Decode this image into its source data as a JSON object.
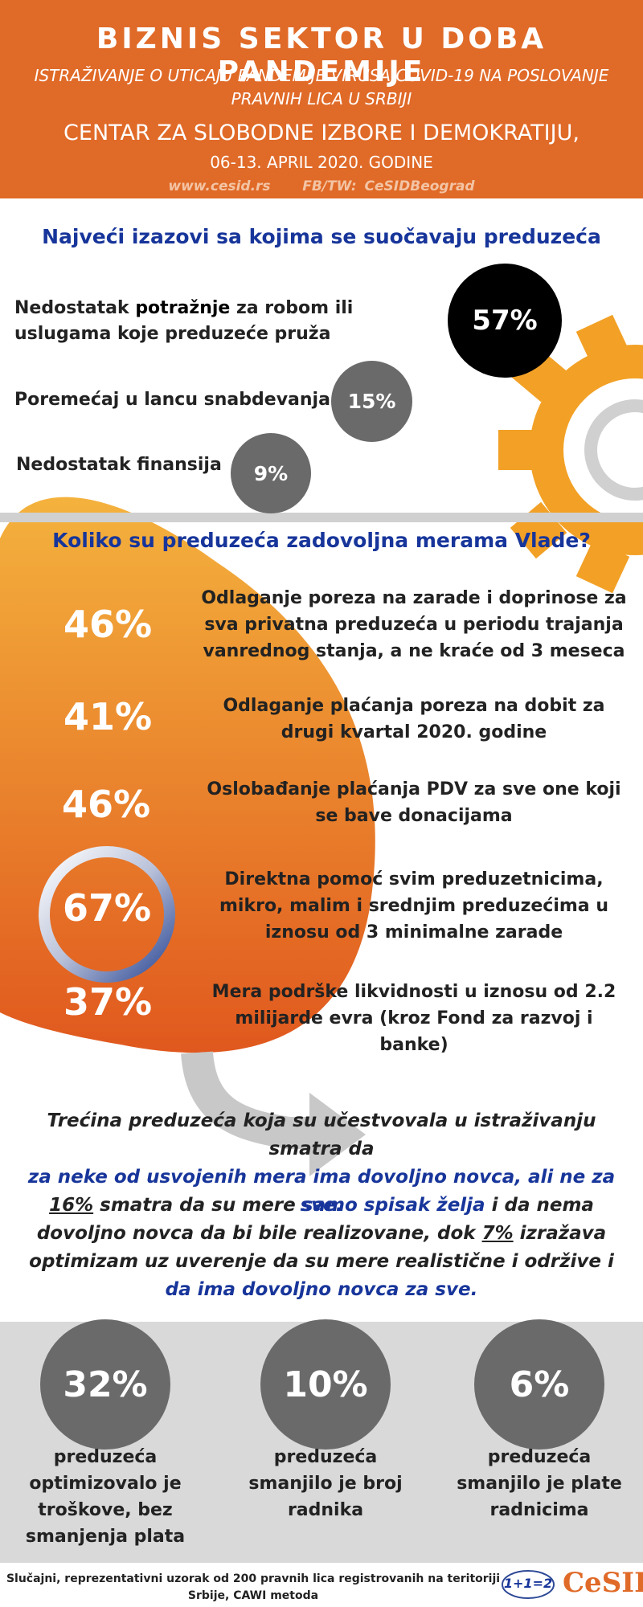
{
  "header": {
    "title": "BIZNIS SEKTOR U DOBA PANDEMIJE",
    "subtitle": "ISTRAŽIVANJE O UTICAJU PANDEMIJE VIRUSA COVID-19 NA POSLOVANJE PRAVNIH LICA U SRBIJI",
    "organization": "CENTAR ZA SLOBODNE IZBORE I DEMOKRATIJU,",
    "date": "06-13. APRIL 2020. GODINE",
    "website": "www.cesid.rs",
    "social": "FB/TW: CeSIDBeograd"
  },
  "challenges": {
    "title": "Najveći izazovi sa kojima se suočavaju preduzeća",
    "items": [
      {
        "pre": "Nedostatak ",
        "bold": "potražnje",
        "post": " za robom ili uslugama koje preduzeće pruža",
        "percent": "57%"
      },
      {
        "pre": "Poremećaj u lancu snabdevanja",
        "bold": "",
        "post": "",
        "percent": "15%"
      },
      {
        "pre": "Nedostatak finansija",
        "bold": "",
        "post": "",
        "percent": "9%"
      }
    ]
  },
  "government": {
    "title": "Koliko su preduzeća zadovoljna merama Vlade?",
    "measures": [
      {
        "percent": "46%",
        "text": "Odlaganje poreza na zarade i doprinose za sva privatna preduzeća u periodu trajanja vanrednog stanja, a ne kraće od 3 meseca"
      },
      {
        "percent": "41%",
        "text": "Odlaganje plaćanja poreza na dobit za drugi kvartal 2020. godine"
      },
      {
        "percent": "46%",
        "text": "Oslobađanje plaćanja PDV za sve one koji se bave donacijama"
      },
      {
        "percent": "67%",
        "text": "Direktna pomoć svim preduzetnicima, mikro, malim i srednjim preduzećima u iznosu od 3 minimalne zarade"
      },
      {
        "percent": "37%",
        "text": "Mera podrške likvidnosti u iznosu od 2.2 milijarde evra (kroz Fond za razvoj i banke)"
      }
    ]
  },
  "summary": {
    "p1_a": "Trećina preduzeća koja su učestvovala u istraživanju smatra da",
    "p1_b": "za neke od usvojenih mera ima dovoljno novca, ali ne za sve.",
    "p2_pct1": "16%",
    "p2_a": " smatra da su mere ",
    "p2_b": "samo spisak želja",
    "p2_c": " i da nema dovoljno novca da bi bile realizovane, dok ",
    "p2_pct2": "7%",
    "p2_d": " izražava optimizam uz uverenje da su mere realistične i održive i ",
    "p2_e": "da ima dovoljno novca za sve."
  },
  "stats": [
    {
      "percent": "32%",
      "label": "preduzeća optimizovalo je troškove, bez smanjenja plata"
    },
    {
      "percent": "10%",
      "label": "preduzeća smanjilo je broj radnika"
    },
    {
      "percent": "6%",
      "label": "preduzeća smanjilo je plate radnicima"
    }
  ],
  "footer": {
    "methodology": "Slučajni, reprezentativni uzorak od 200 pravnih lica registrovanih na teritoriji Srbije, CAWI metoda",
    "logo_math": "1+1=2",
    "logo_name": "CeSID"
  },
  "colors": {
    "orange": "#e06a28",
    "blue": "#17359a",
    "gear": "#f2a126",
    "dark_gray": "#6a6a6a"
  }
}
